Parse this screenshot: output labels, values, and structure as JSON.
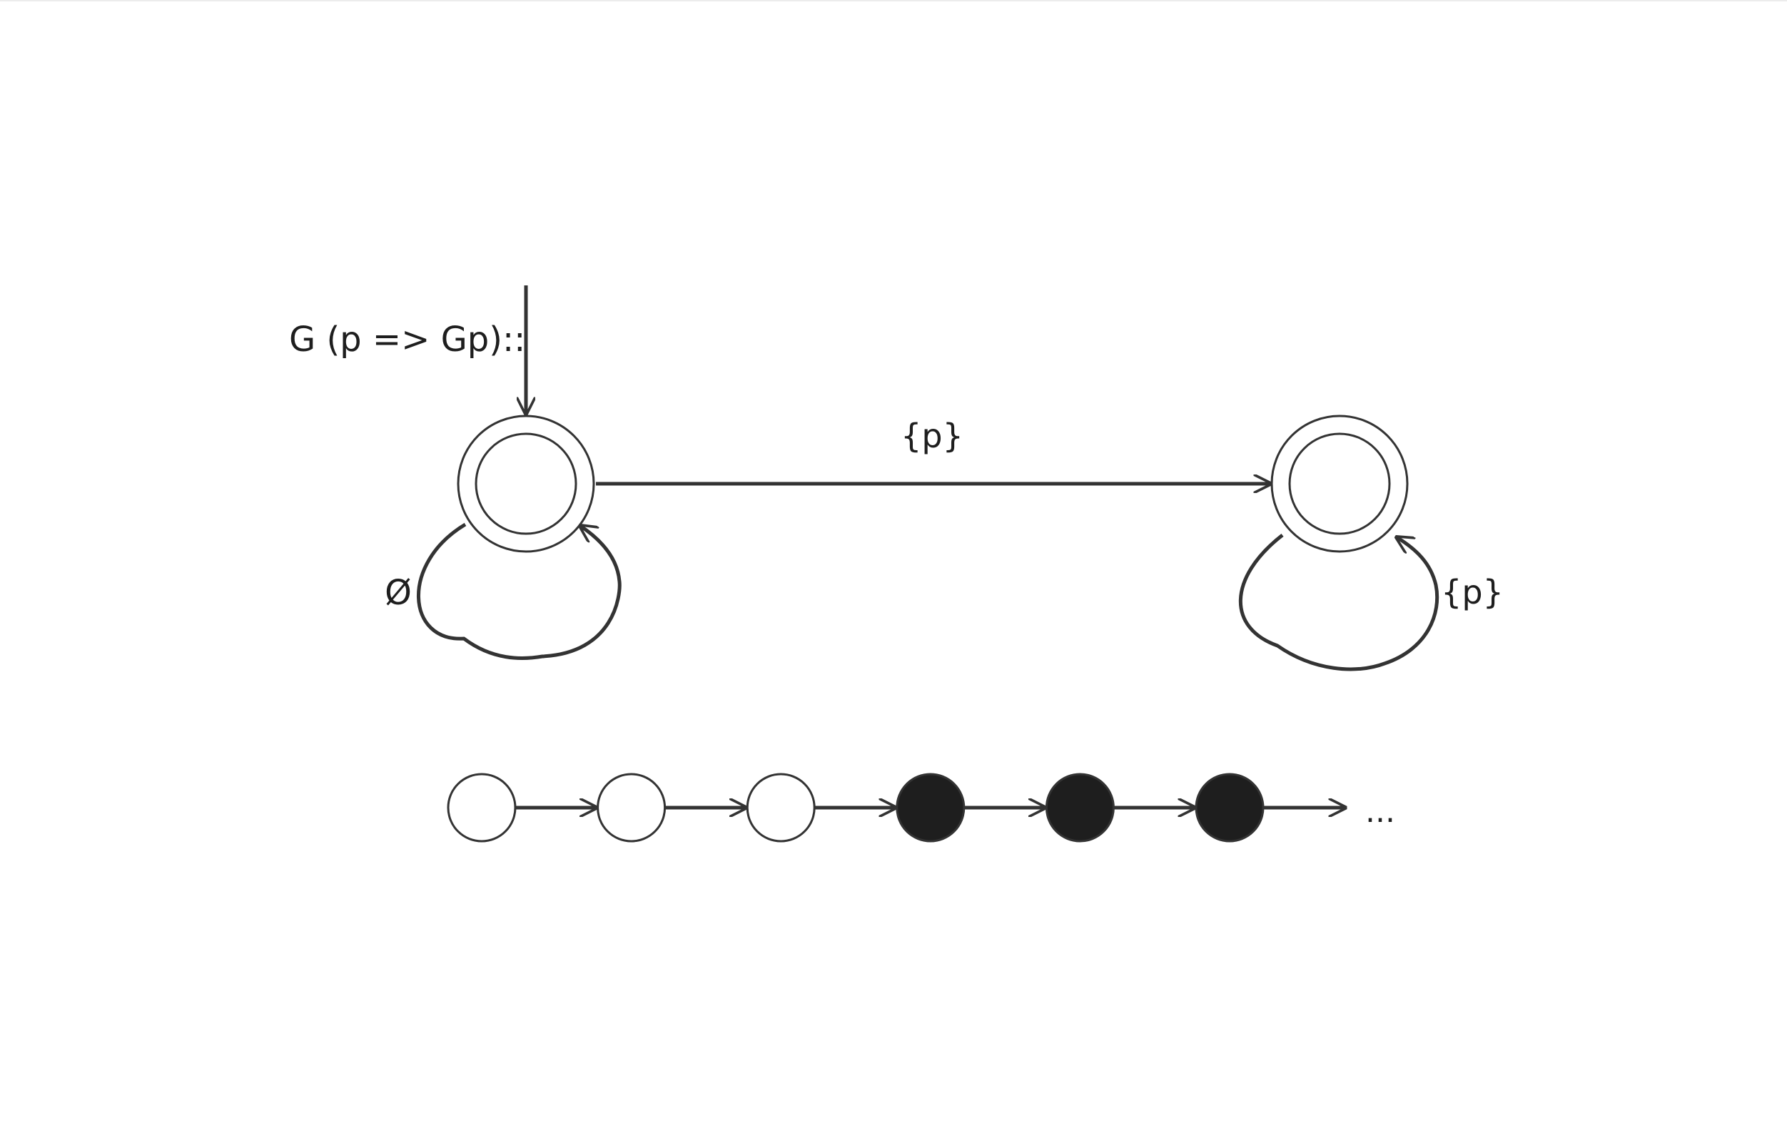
{
  "diagram": {
    "formula_label": "G (p => Gp)::",
    "states": [
      {
        "id": "q0",
        "accepting": true,
        "initial": true
      },
      {
        "id": "q1",
        "accepting": true,
        "initial": false
      }
    ],
    "transitions": {
      "q0_to_q1": "{p}",
      "q0_self_loop": "Ø",
      "q1_self_loop": "{p}"
    },
    "trace": {
      "nodes": [
        {
          "value": "empty",
          "filled": false
        },
        {
          "value": "empty",
          "filled": false
        },
        {
          "value": "empty",
          "filled": false
        },
        {
          "value": "p",
          "filled": true
        },
        {
          "value": "p",
          "filled": true
        },
        {
          "value": "p",
          "filled": true
        }
      ],
      "continuation": "..."
    }
  },
  "colors": {
    "stroke": "#333333",
    "text": "#1e1e1e",
    "filled_node": "#1e1e1e",
    "empty_node": "#ffffff"
  }
}
